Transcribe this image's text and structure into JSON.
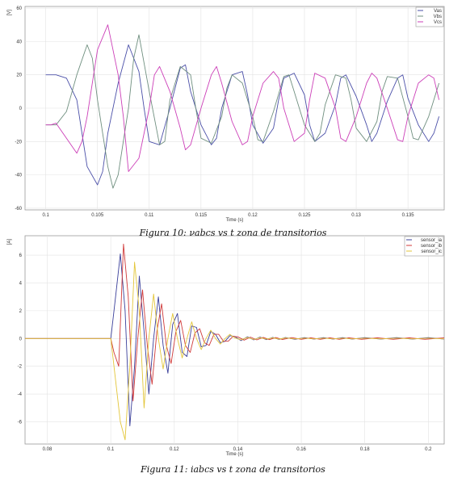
{
  "chart_data": [
    {
      "type": "line",
      "title": "",
      "xlabel": "Time (s)",
      "ylabel": "[V]",
      "xlim": [
        0.098,
        0.1385
      ],
      "ylim": [
        -61,
        61
      ],
      "x_ticks": [
        0.1,
        0.105,
        0.11,
        0.115,
        0.12,
        0.125,
        0.13,
        0.135
      ],
      "x_tick_labels": [
        "0.1",
        "0.105",
        "0.11",
        "0.115",
        "0.12",
        "0.125",
        "0.13",
        "0.135"
      ],
      "y_ticks": [
        -60,
        -40,
        -20,
        0,
        20,
        40,
        60
      ],
      "grid": true,
      "legend_position": "top-right",
      "series": [
        {
          "name": "Vas",
          "color": "#4a4fa8",
          "x": [
            0.1,
            0.101,
            0.102,
            0.103,
            0.1035,
            0.104,
            0.105,
            0.1055,
            0.106,
            0.107,
            0.108,
            0.109,
            0.1095,
            0.11,
            0.111,
            0.112,
            0.113,
            0.1135,
            0.114,
            0.115,
            0.116,
            0.1165,
            0.117,
            0.118,
            0.119,
            0.1195,
            0.12,
            0.121,
            0.122,
            0.1225,
            0.123,
            0.124,
            0.125,
            0.1255,
            0.126,
            0.127,
            0.128,
            0.1285,
            0.129,
            0.13,
            0.131,
            0.1315,
            0.132,
            0.133,
            0.134,
            0.1345,
            0.135,
            0.136,
            0.137,
            0.1375,
            0.138
          ],
          "y": [
            20,
            20,
            18,
            5,
            -15,
            -35,
            -46,
            -38,
            -15,
            15,
            38,
            22,
            0,
            -20,
            -22,
            0,
            24,
            26,
            10,
            -10,
            -22,
            -18,
            0,
            20,
            22,
            8,
            -10,
            -21,
            -12,
            5,
            18,
            21,
            8,
            -10,
            -20,
            -15,
            2,
            18,
            20,
            7,
            -10,
            -20,
            -15,
            4,
            18,
            20,
            6,
            -10,
            -20,
            -15,
            -5
          ]
        },
        {
          "name": "Vbs",
          "color": "#6f8f7f",
          "x": [
            0.1,
            0.1005,
            0.101,
            0.102,
            0.103,
            0.104,
            0.1045,
            0.105,
            0.106,
            0.1065,
            0.107,
            0.108,
            0.1085,
            0.109,
            0.11,
            0.111,
            0.1115,
            0.112,
            0.113,
            0.114,
            0.1145,
            0.115,
            0.116,
            0.117,
            0.1175,
            0.118,
            0.119,
            0.12,
            0.1205,
            0.121,
            0.122,
            0.123,
            0.1235,
            0.124,
            0.125,
            0.126,
            0.1265,
            0.127,
            0.128,
            0.129,
            0.1295,
            0.13,
            0.131,
            0.132,
            0.1325,
            0.133,
            0.134,
            0.135,
            0.1355,
            0.136,
            0.137,
            0.138
          ],
          "y": [
            -10,
            -10,
            -10,
            -2,
            20,
            38,
            30,
            5,
            -35,
            -48,
            -40,
            0,
            30,
            44,
            10,
            -22,
            -20,
            5,
            25,
            20,
            0,
            -18,
            -21,
            -5,
            12,
            20,
            15,
            -5,
            -19,
            -20,
            -2,
            19,
            20,
            10,
            -10,
            -20,
            -15,
            2,
            20,
            18,
            5,
            -12,
            -20,
            -8,
            10,
            19,
            18,
            -5,
            -18,
            -19,
            -5,
            15
          ]
        },
        {
          "name": "Vcs",
          "color": "#cc3fb8",
          "x": [
            0.1,
            0.1005,
            0.101,
            0.102,
            0.103,
            0.1035,
            0.104,
            0.105,
            0.106,
            0.107,
            0.1075,
            0.108,
            0.109,
            0.11,
            0.1105,
            0.111,
            0.112,
            0.113,
            0.1135,
            0.114,
            0.115,
            0.116,
            0.1165,
            0.117,
            0.118,
            0.119,
            0.1195,
            0.12,
            0.121,
            0.122,
            0.1225,
            0.123,
            0.124,
            0.125,
            0.1255,
            0.126,
            0.127,
            0.128,
            0.1285,
            0.129,
            0.13,
            0.131,
            0.1315,
            0.132,
            0.133,
            0.134,
            0.1345,
            0.135,
            0.136,
            0.137,
            0.1375,
            0.138
          ],
          "y": [
            -10,
            -10,
            -9,
            -18,
            -27,
            -20,
            -5,
            35,
            50,
            20,
            -5,
            -38,
            -30,
            0,
            20,
            25,
            10,
            -12,
            -25,
            -22,
            0,
            20,
            25,
            15,
            -8,
            -22,
            -20,
            -5,
            15,
            22,
            18,
            0,
            -20,
            -15,
            5,
            21,
            18,
            0,
            -18,
            -20,
            -5,
            15,
            21,
            18,
            0,
            -19,
            -20,
            -5,
            15,
            20,
            18,
            5
          ]
        }
      ]
    },
    {
      "type": "line",
      "title": "",
      "xlabel": "Time (s)",
      "ylabel": "[A]",
      "xlim": [
        0.073,
        0.205
      ],
      "ylim": [
        -7.6,
        7.4
      ],
      "x_ticks": [
        0.08,
        0.1,
        0.12,
        0.14,
        0.16,
        0.18,
        0.2
      ],
      "x_tick_labels": [
        "0.08",
        "0.1",
        "0.12",
        "0.14",
        "0.16",
        "0.18",
        "0.2"
      ],
      "y_ticks": [
        -6,
        -4,
        -2,
        0,
        2,
        4,
        6
      ],
      "grid": true,
      "legend_position": "top-right",
      "series": [
        {
          "name": "sensor_ia",
          "color": "#3a3f9a",
          "x": [
            0.073,
            0.1,
            0.1015,
            0.103,
            0.1045,
            0.106,
            0.1075,
            0.109,
            0.1105,
            0.112,
            0.1135,
            0.115,
            0.1165,
            0.118,
            0.1195,
            0.121,
            0.1225,
            0.124,
            0.1255,
            0.127,
            0.1285,
            0.13,
            0.1315,
            0.133,
            0.1345,
            0.136,
            0.1375,
            0.139,
            0.141,
            0.143,
            0.145,
            0.147,
            0.149,
            0.151,
            0.153,
            0.155,
            0.158,
            0.161,
            0.164,
            0.167,
            0.17,
            0.173,
            0.176,
            0.18,
            0.185,
            0.19,
            0.195,
            0.2,
            0.205
          ],
          "y": [
            0,
            0,
            3,
            6.1,
            2,
            -6.3,
            -2,
            4.5,
            0.5,
            -4,
            0,
            3,
            -0.5,
            -2.5,
            1,
            1.8,
            -1,
            -1.3,
            0.9,
            0.8,
            -0.6,
            -0.5,
            0.5,
            0.3,
            -0.3,
            -0.2,
            0.2,
            0.15,
            -0.15,
            0.12,
            -0.1,
            0.1,
            -0.08,
            0.08,
            -0.07,
            0.07,
            -0.06,
            0.06,
            -0.05,
            0.06,
            -0.05,
            0.06,
            -0.05,
            0.06,
            -0.05,
            0.06,
            -0.05,
            0.06,
            -0.05
          ]
        },
        {
          "name": "sensor_ib",
          "color": "#d03a3a",
          "x": [
            0.073,
            0.1,
            0.101,
            0.1025,
            0.104,
            0.1055,
            0.107,
            0.1085,
            0.11,
            0.1115,
            0.113,
            0.1145,
            0.116,
            0.1175,
            0.119,
            0.1205,
            0.122,
            0.1235,
            0.125,
            0.1265,
            0.128,
            0.1295,
            0.131,
            0.1325,
            0.134,
            0.1355,
            0.137,
            0.1385,
            0.14,
            0.142,
            0.144,
            0.146,
            0.148,
            0.15,
            0.152,
            0.154,
            0.157,
            0.16,
            0.163,
            0.166,
            0.169,
            0.172,
            0.175,
            0.179,
            0.184,
            0.189,
            0.194,
            0.199,
            0.205
          ],
          "y": [
            0,
            0,
            -1,
            -2,
            6.8,
            3,
            -4.5,
            0,
            3.5,
            -0.5,
            -3.3,
            0.5,
            2.5,
            -0.5,
            -1.8,
            0.5,
            1.3,
            -0.5,
            -1,
            0.4,
            0.7,
            -0.3,
            -0.5,
            0.3,
            0.3,
            -0.2,
            -0.2,
            0.15,
            0.12,
            -0.12,
            0.1,
            -0.1,
            0.08,
            -0.08,
            0.07,
            -0.07,
            0.06,
            -0.06,
            0.05,
            -0.06,
            0.05,
            -0.06,
            0.05,
            -0.06,
            0.05,
            -0.06,
            0.05,
            -0.06,
            0.05
          ]
        },
        {
          "name": "sensor_ic",
          "color": "#e3c63a",
          "x": [
            0.073,
            0.1,
            0.1015,
            0.103,
            0.1045,
            0.106,
            0.1075,
            0.109,
            0.1105,
            0.112,
            0.1135,
            0.115,
            0.1165,
            0.118,
            0.1195,
            0.121,
            0.1225,
            0.124,
            0.1255,
            0.127,
            0.1285,
            0.13,
            0.1315,
            0.133,
            0.1345,
            0.136,
            0.1375,
            0.139,
            0.141,
            0.143,
            0.145,
            0.147,
            0.149,
            0.151,
            0.153,
            0.155,
            0.158,
            0.161,
            0.164,
            0.167,
            0.17,
            0.173,
            0.176,
            0.18,
            0.185,
            0.19,
            0.195,
            0.2,
            0.205
          ],
          "y": [
            0,
            0,
            -3,
            -6,
            -7.3,
            -2,
            5.5,
            2,
            -5,
            0,
            3.2,
            0,
            -2.2,
            0,
            1.8,
            0,
            -1.4,
            0,
            1.2,
            0,
            -0.8,
            0,
            0.6,
            0,
            -0.4,
            0,
            0.3,
            0.05,
            -0.1,
            0.08,
            -0.07,
            0.06,
            -0.05,
            0.05,
            -0.04,
            0.04,
            -0.03,
            0.03,
            -0.03,
            0.03,
            -0.03,
            0.03,
            -0.03,
            0.03,
            -0.03,
            0.03,
            -0.03,
            0.03,
            -0.03
          ]
        }
      ]
    }
  ],
  "captions": {
    "fig10": "Figura 10: νabcs vs t  zona de transitorios",
    "fig11": "Figura 11: iabcs vs t  zona de transitorios"
  }
}
